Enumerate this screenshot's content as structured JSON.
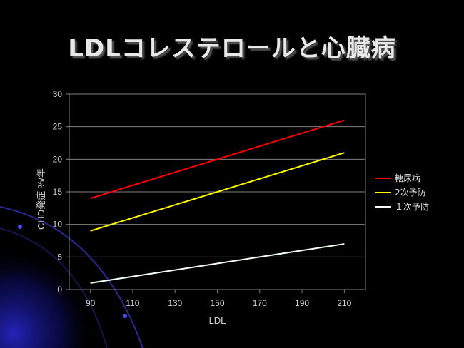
{
  "slide": {
    "title": "LDLコレステロールと心臓病"
  },
  "chart_data": {
    "type": "line",
    "title": "",
    "xlabel": "LDL",
    "ylabel": "CHD発症 %/年",
    "categories": [
      "90",
      "110",
      "130",
      "150",
      "170",
      "190",
      "210"
    ],
    "x": [
      90,
      110,
      130,
      150,
      170,
      190,
      210
    ],
    "xlim": [
      80,
      220
    ],
    "ylim": [
      0,
      30
    ],
    "y_ticks": [
      0,
      5,
      10,
      15,
      20,
      25,
      30
    ],
    "grid": "horizontal",
    "legend_position": "right",
    "series": [
      {
        "name": "糖尿病",
        "color": "#ff0000",
        "x": [
          90,
          210
        ],
        "values": [
          14,
          26
        ]
      },
      {
        "name": "2次予防",
        "color": "#ffff00",
        "x": [
          90,
          210
        ],
        "values": [
          9,
          21
        ]
      },
      {
        "name": "１次予防",
        "color": "#f0fff0",
        "x": [
          90,
          210
        ],
        "values": [
          1,
          7
        ]
      }
    ]
  }
}
